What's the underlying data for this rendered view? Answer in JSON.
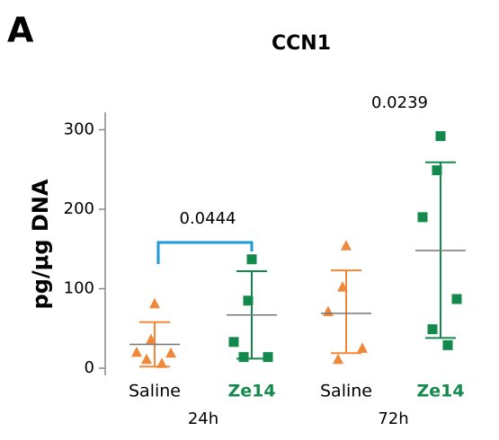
{
  "chart_data": {
    "type": "dot",
    "panel_label": "A",
    "title": "CCN1",
    "ylabel": "pg/μg DNA",
    "ylim": [
      -9,
      322
    ],
    "yticks": [
      0,
      100,
      200,
      300
    ],
    "categories": [
      "Saline",
      "Ze14",
      "Saline",
      "Ze14"
    ],
    "group_labels": [
      "24h",
      "72h"
    ],
    "colors": [
      "#f0883a",
      "#138a4c",
      "#f0883a",
      "#138a4c"
    ],
    "markers": [
      "triangle",
      "square",
      "triangle",
      "square"
    ],
    "label_colors": [
      "#000000",
      "#138a4c",
      "#000000",
      "#138a4c"
    ],
    "mean_color": "#777777",
    "points": [
      [
        81,
        36,
        20,
        19,
        11,
        6
      ],
      [
        137,
        85,
        33,
        14,
        14
      ],
      [
        154,
        102,
        71,
        25,
        11
      ],
      [
        292,
        249,
        190,
        87,
        49,
        29
      ]
    ],
    "means": [
      30,
      67,
      69,
      148
    ],
    "upper": [
      58,
      122,
      123,
      259
    ],
    "lower": [
      2,
      12,
      19,
      38
    ],
    "annotations": [
      {
        "text": "0.0444",
        "from": 0,
        "to": 1,
        "bracket": true,
        "color": "#1e9bd7"
      },
      {
        "text": "0.0239",
        "from": 2,
        "to": 3,
        "bracket": false
      }
    ]
  }
}
